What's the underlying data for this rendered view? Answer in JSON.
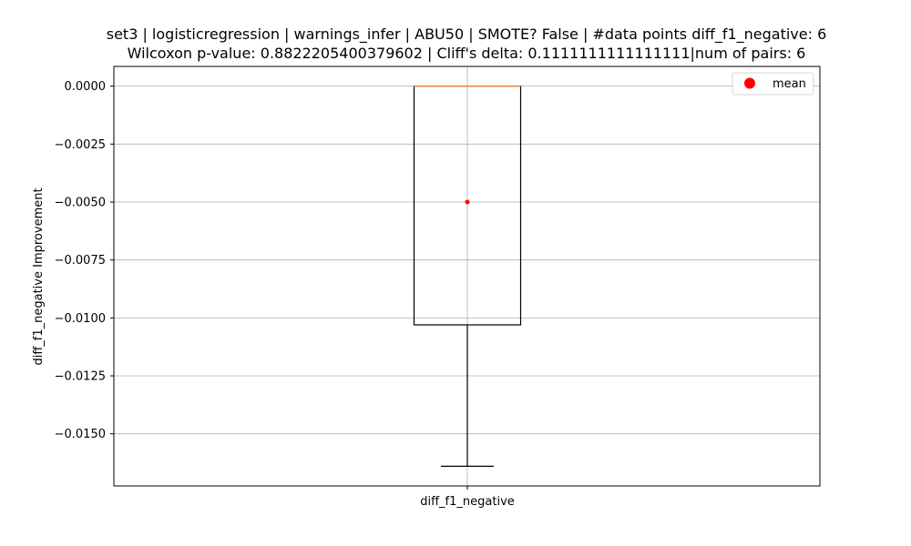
{
  "chart_data": {
    "type": "box",
    "title_lines": [
      "set3 | logisticregression | warnings_infer | ABU50 | SMOTE? False | #data points diff_f1_negative: 6",
      "Wilcoxon p-value: 0.8822205400379602 | Cliff's delta: 0.1111111111111111|num of pairs: 6"
    ],
    "ylabel": "diff_f1_negative Improvement",
    "xlabel": "",
    "categories": [
      "diff_f1_negative"
    ],
    "ylim": [
      -0.01725,
      0.00085
    ],
    "yticks": [
      0.0,
      -0.0025,
      -0.005,
      -0.0075,
      -0.01,
      -0.0125,
      -0.015
    ],
    "ytick_labels": [
      "0.0000",
      "−0.0025",
      "−0.0050",
      "−0.0075",
      "−0.0100",
      "−0.0125",
      "−0.0150"
    ],
    "grid": true,
    "box": {
      "whisker_low": -0.0164,
      "q1": -0.0103,
      "median": 0.0,
      "q3": 0.0,
      "whisker_high": 0.0,
      "mean": -0.005
    },
    "legend": {
      "entries": [
        "mean"
      ],
      "placement": "top-right"
    },
    "colors": {
      "box": "#000000",
      "median": "#e8884a",
      "mean": "#ff0000",
      "grid": "#b0b0b0"
    }
  }
}
